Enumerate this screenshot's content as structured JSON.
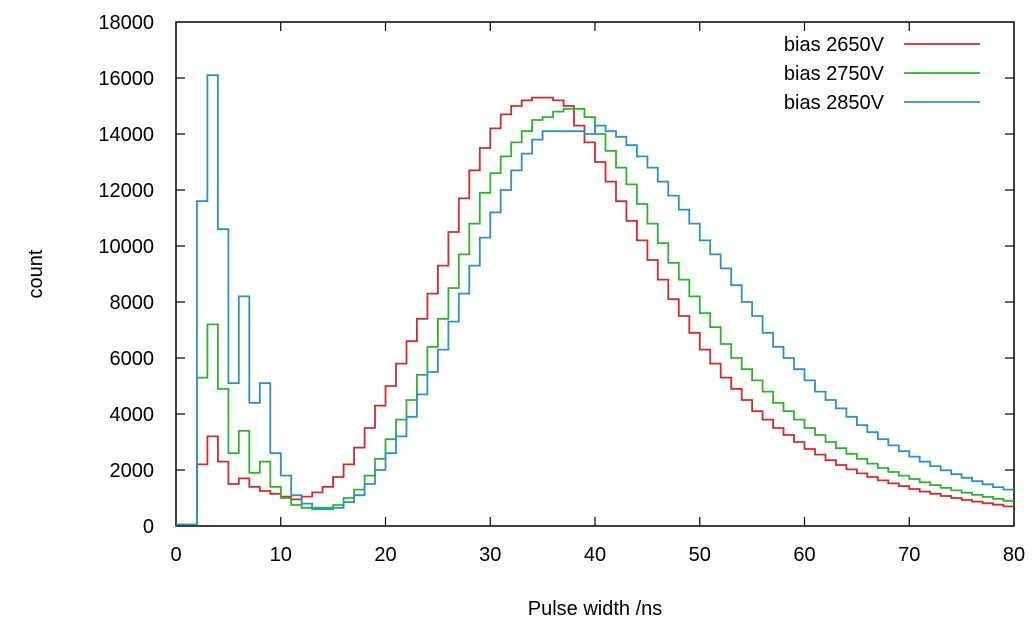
{
  "chart_data": {
    "type": "line",
    "step": true,
    "xlabel": "Pulse width /ns",
    "ylabel": "count",
    "xlim": [
      0,
      80
    ],
    "ylim": [
      0,
      18000
    ],
    "xticks": [
      0,
      10,
      20,
      30,
      40,
      50,
      60,
      70,
      80
    ],
    "yticks": [
      0,
      2000,
      4000,
      6000,
      8000,
      10000,
      12000,
      14000,
      16000,
      18000
    ],
    "grid": false,
    "legend_position": "top-right",
    "x": [
      0.0,
      1.0,
      2.0,
      3.0,
      4.0,
      5.0,
      6.0,
      7.0,
      8.0,
      9.0,
      10.0,
      11.0,
      12.0,
      13.0,
      14.0,
      15.0,
      16.0,
      17.0,
      18.0,
      19.0,
      20.0,
      21.0,
      22.0,
      23.0,
      24.0,
      25.0,
      26.0,
      27.0,
      28.0,
      29.0,
      30.0,
      31.0,
      32.0,
      33.0,
      34.0,
      35.0,
      36.0,
      37.0,
      38.0,
      39.0,
      40.0,
      41.0,
      42.0,
      43.0,
      44.0,
      45.0,
      46.0,
      47.0,
      48.0,
      49.0,
      50.0,
      51.0,
      52.0,
      53.0,
      54.0,
      55.0,
      56.0,
      57.0,
      58.0,
      59.0,
      60.0,
      61.0,
      62.0,
      63.0,
      64.0,
      65.0,
      66.0,
      67.0,
      68.0,
      69.0,
      70.0,
      71.0,
      72.0,
      73.0,
      74.0,
      75.0,
      76.0,
      77.0,
      78.0,
      79.0
    ],
    "series": [
      {
        "name": "bias 2650V",
        "color": "#d42a2a",
        "values": [
          50,
          50,
          2200,
          3200,
          2300,
          1500,
          1700,
          1400,
          1250,
          1150,
          1050,
          950,
          1050,
          1200,
          1400,
          1750,
          2200,
          2800,
          3500,
          4300,
          5000,
          5800,
          6600,
          7400,
          8300,
          9300,
          10500,
          11700,
          12700,
          13500,
          14200,
          14700,
          15000,
          15200,
          15300,
          15300,
          15200,
          15000,
          14300,
          13700,
          13000,
          12300,
          11600,
          10900,
          10200,
          9500,
          8800,
          8100,
          7500,
          6900,
          6300,
          5800,
          5300,
          4900,
          4500,
          4100,
          3800,
          3500,
          3250,
          3000,
          2750,
          2550,
          2350,
          2180,
          2020,
          1880,
          1750,
          1630,
          1520,
          1420,
          1320,
          1230,
          1150,
          1070,
          1000,
          930,
          870,
          810,
          760,
          700
        ]
      },
      {
        "name": "bias 2750V",
        "color": "#2fb32f",
        "values": [
          50,
          50,
          5300,
          7200,
          4900,
          2600,
          3400,
          1900,
          2300,
          1400,
          1000,
          750,
          650,
          600,
          650,
          750,
          1000,
          1300,
          1800,
          2400,
          3100,
          3800,
          4500,
          5400,
          6400,
          7400,
          8500,
          9700,
          10800,
          11900,
          12600,
          13200,
          13700,
          14100,
          14500,
          14600,
          14800,
          14900,
          14900,
          14600,
          14000,
          13400,
          12800,
          12200,
          11500,
          10800,
          10100,
          9400,
          8800,
          8200,
          7600,
          7100,
          6500,
          6000,
          5600,
          5200,
          4800,
          4400,
          4100,
          3800,
          3500,
          3250,
          3000,
          2780,
          2580,
          2400,
          2230,
          2070,
          1930,
          1800,
          1680,
          1560,
          1460,
          1360,
          1270,
          1190,
          1110,
          1040,
          970,
          900
        ]
      },
      {
        "name": "bias 2850V",
        "color": "#2e8fcb",
        "values": [
          50,
          50,
          11600,
          16100,
          10600,
          5100,
          8200,
          4400,
          5100,
          2600,
          1800,
          1100,
          800,
          650,
          600,
          650,
          850,
          1100,
          1500,
          2000,
          2600,
          3200,
          3900,
          4700,
          5500,
          6300,
          7300,
          8300,
          9300,
          10300,
          11200,
          12000,
          12700,
          13300,
          13800,
          14100,
          14100,
          14100,
          14100,
          14000,
          14300,
          14100,
          13900,
          13600,
          13200,
          12800,
          12300,
          11800,
          11300,
          10800,
          10200,
          9700,
          9200,
          8600,
          8000,
          7500,
          6900,
          6400,
          6000,
          5600,
          5200,
          4800,
          4500,
          4200,
          3900,
          3600,
          3350,
          3100,
          2880,
          2670,
          2480,
          2300,
          2140,
          1990,
          1850,
          1720,
          1600,
          1490,
          1390,
          1300
        ]
      }
    ]
  }
}
